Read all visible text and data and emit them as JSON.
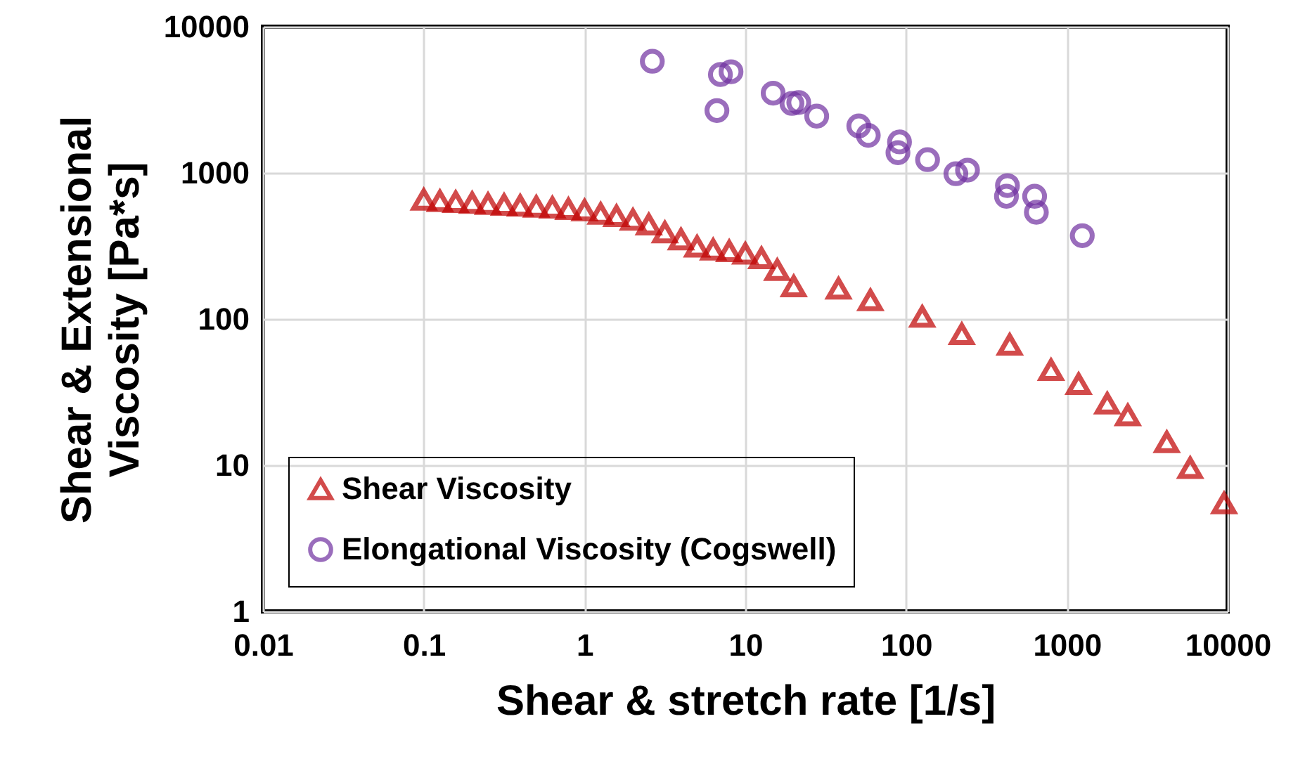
{
  "chart_data": {
    "type": "scatter",
    "xlabel": "Shear & stretch rate [1/s]",
    "ylabel": "Shear & Extensional Viscosity [Pa*s]",
    "log": "xy",
    "xlim": [
      0.01,
      10000
    ],
    "xticks": [
      0.01,
      0.1,
      1,
      10,
      100,
      1000,
      10000
    ],
    "ylim": [
      1,
      10000
    ],
    "yticks": [
      1,
      10,
      100,
      1000,
      10000
    ],
    "grid": true,
    "legend": "bottom left",
    "series": [
      {
        "name": "Shear Viscosity",
        "color": "#c00000",
        "marker": "triangle",
        "x": [
          0.1,
          0.126,
          0.158,
          0.2,
          0.251,
          0.316,
          0.398,
          0.501,
          0.631,
          0.794,
          1,
          1.26,
          1.58,
          2,
          2.51,
          3.16,
          3.98,
          5.01,
          6.31,
          7.94,
          10,
          12.6,
          15.8,
          20,
          38,
          60,
          126,
          222,
          441,
          797,
          1183,
          1783,
          2393,
          4182,
          5848,
          9500
        ],
        "values": [
          656,
          642,
          634,
          624,
          614,
          606,
          597,
          588,
          580,
          567,
          555,
          526,
          508,
          479,
          445,
          392,
          351,
          314,
          299,
          292,
          281,
          261,
          217,
          168,
          162,
          135,
          104,
          79,
          67,
          45,
          36,
          26.5,
          22,
          14.4,
          9.6,
          5.5
        ]
      },
      {
        "name": "Elongational Viscosity (Cogswell)",
        "color": "#7030a0",
        "marker": "circle",
        "x": [
          2.64,
          6.66,
          7.0,
          8.15,
          14.9,
          19.5,
          21.5,
          27.8,
          50.8,
          58.2,
          91,
          89,
          136,
          204,
          241,
          427,
          421,
          630,
          646,
          1247
        ],
        "values": [
          5800,
          2670,
          4710,
          4920,
          3510,
          2985,
          3030,
          2445,
          2094,
          1806,
          1628,
          1375,
          1231,
          987,
          1045,
          819,
          692,
          692,
          538,
          372
        ]
      }
    ]
  }
}
